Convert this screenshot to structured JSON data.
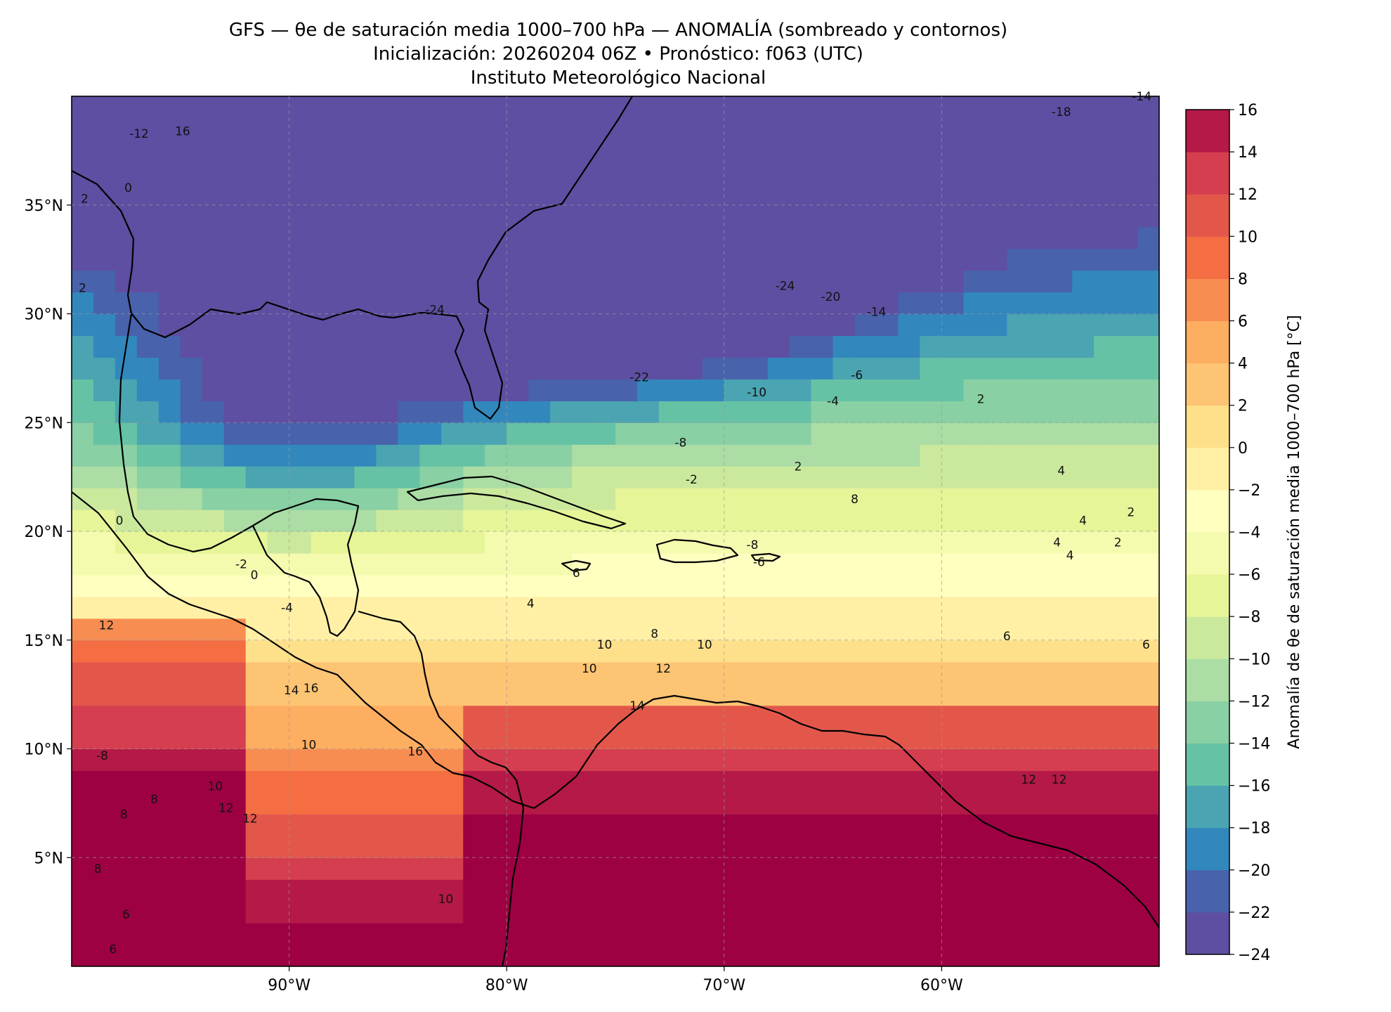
{
  "title": {
    "line1": "GFS — θe de saturación media 1000–700 hPa — ANOMALÍA (sombreado y contornos)",
    "line2": "Inicialización: 20260204 06Z   •   Pronóstico: f063 (UTC)",
    "line3": "Instituto Meteorológico Nacional"
  },
  "map": {
    "lon_range": [
      -100,
      -50
    ],
    "lat_range": [
      0,
      40
    ],
    "lon_ticks": [
      {
        "value": -90,
        "label": "90°W"
      },
      {
        "value": -80,
        "label": "80°W"
      },
      {
        "value": -70,
        "label": "70°W"
      },
      {
        "value": -60,
        "label": "60°W"
      }
    ],
    "lat_ticks": [
      {
        "value": 35,
        "label": "35°N"
      },
      {
        "value": 30,
        "label": "30°N"
      },
      {
        "value": 25,
        "label": "25°N"
      },
      {
        "value": 20,
        "label": "20°N"
      },
      {
        "value": 15,
        "label": "15°N"
      },
      {
        "value": 10,
        "label": "10°N"
      },
      {
        "value": 5,
        "label": "5°N"
      }
    ],
    "gridlines": true,
    "contour_labels": [
      {
        "text": "-12",
        "lon": -96.9,
        "lat": 38.1
      },
      {
        "text": "16",
        "lon": -94.9,
        "lat": 38.2
      },
      {
        "text": "0",
        "lon": -97.4,
        "lat": 35.6
      },
      {
        "text": "2",
        "lon": -99.4,
        "lat": 35.1
      },
      {
        "text": "2",
        "lon": -99.5,
        "lat": 31.0
      },
      {
        "text": "-24",
        "lon": -83.3,
        "lat": 30.0
      },
      {
        "text": "-22",
        "lon": -73.9,
        "lat": 26.9
      },
      {
        "text": "-24",
        "lon": -67.2,
        "lat": 31.1
      },
      {
        "text": "-20",
        "lon": -65.1,
        "lat": 30.6
      },
      {
        "text": "-14",
        "lon": -63.0,
        "lat": 29.9
      },
      {
        "text": "-6",
        "lon": -63.9,
        "lat": 27.0
      },
      {
        "text": "-10",
        "lon": -68.5,
        "lat": 26.2
      },
      {
        "text": "-4",
        "lon": -65.0,
        "lat": 25.8
      },
      {
        "text": "-8",
        "lon": -72.0,
        "lat": 23.9
      },
      {
        "text": "-2",
        "lon": -71.5,
        "lat": 22.2
      },
      {
        "text": "2",
        "lon": -58.2,
        "lat": 25.9
      },
      {
        "text": "2",
        "lon": -66.6,
        "lat": 22.8
      },
      {
        "text": "8",
        "lon": -64.0,
        "lat": 21.3
      },
      {
        "text": "4",
        "lon": -54.5,
        "lat": 22.6
      },
      {
        "text": "4",
        "lon": -53.5,
        "lat": 20.3
      },
      {
        "text": "4",
        "lon": -54.7,
        "lat": 19.3
      },
      {
        "text": "4",
        "lon": -54.1,
        "lat": 18.7
      },
      {
        "text": "2",
        "lon": -51.3,
        "lat": 20.7
      },
      {
        "text": "2",
        "lon": -51.9,
        "lat": 19.3
      },
      {
        "text": "-2",
        "lon": -92.2,
        "lat": 18.3
      },
      {
        "text": "0",
        "lon": -91.6,
        "lat": 17.8
      },
      {
        "text": "-4",
        "lon": -90.1,
        "lat": 16.3
      },
      {
        "text": "0",
        "lon": -97.8,
        "lat": 20.3
      },
      {
        "text": "-8",
        "lon": -68.7,
        "lat": 19.2
      },
      {
        "text": "-6",
        "lon": -68.4,
        "lat": 18.4
      },
      {
        "text": "6",
        "lon": -76.8,
        "lat": 17.9
      },
      {
        "text": "4",
        "lon": -78.9,
        "lat": 16.5
      },
      {
        "text": "8",
        "lon": -73.2,
        "lat": 15.1
      },
      {
        "text": "10",
        "lon": -75.5,
        "lat": 14.6
      },
      {
        "text": "10",
        "lon": -70.9,
        "lat": 14.6
      },
      {
        "text": "10",
        "lon": -76.2,
        "lat": 13.5
      },
      {
        "text": "12",
        "lon": -72.8,
        "lat": 13.5
      },
      {
        "text": "14",
        "lon": -74.0,
        "lat": 11.8
      },
      {
        "text": "6",
        "lon": -57.0,
        "lat": 15.0
      },
      {
        "text": "6",
        "lon": -50.6,
        "lat": 14.6
      },
      {
        "text": "12",
        "lon": -98.4,
        "lat": 15.5
      },
      {
        "text": "14",
        "lon": -89.9,
        "lat": 12.5
      },
      {
        "text": "16",
        "lon": -89.0,
        "lat": 12.6
      },
      {
        "text": "10",
        "lon": -89.1,
        "lat": 10.0
      },
      {
        "text": "16",
        "lon": -84.2,
        "lat": 9.7
      },
      {
        "text": "-8",
        "lon": -98.6,
        "lat": 9.5
      },
      {
        "text": "8",
        "lon": -96.2,
        "lat": 7.5
      },
      {
        "text": "8",
        "lon": -97.6,
        "lat": 6.8
      },
      {
        "text": "10",
        "lon": -93.4,
        "lat": 8.1
      },
      {
        "text": "12",
        "lon": -92.9,
        "lat": 7.1
      },
      {
        "text": "12",
        "lon": -91.8,
        "lat": 6.6
      },
      {
        "text": "8",
        "lon": -98.8,
        "lat": 4.3
      },
      {
        "text": "6",
        "lon": -97.5,
        "lat": 2.2
      },
      {
        "text": "6",
        "lon": -98.1,
        "lat": 0.6
      },
      {
        "text": "10",
        "lon": -82.8,
        "lat": 2.9
      },
      {
        "text": "12",
        "lon": -56.0,
        "lat": 8.4
      },
      {
        "text": "-18",
        "lon": -54.5,
        "lat": 39.1
      },
      {
        "text": "-14",
        "lon": -50.8,
        "lat": 39.8
      },
      {
        "text": "12",
        "lon": -54.6,
        "lat": 8.4
      }
    ]
  },
  "colorbar": {
    "label": "Anomalía de θe de saturación media 1000–700 hPa [°C]",
    "tick_labels": [
      "16",
      "14",
      "12",
      "10",
      "8",
      "6",
      "4",
      "2",
      "0",
      "−2",
      "−4",
      "−6",
      "−8",
      "−10",
      "−12",
      "−14",
      "−16",
      "−18",
      "−20",
      "−22",
      "−24"
    ],
    "levels": [
      -24,
      -22,
      -20,
      -18,
      -16,
      -14,
      -12,
      -10,
      -8,
      -6,
      -4,
      -2,
      0,
      2,
      4,
      6,
      8,
      10,
      12,
      14,
      16
    ],
    "colors": [
      "#5e4fa2",
      "#4862ac",
      "#3288bd",
      "#4ba4b1",
      "#66c2a5",
      "#89d0a4",
      "#abdda4",
      "#cbe99d",
      "#e6f598",
      "#f4faae",
      "#ffffbf",
      "#fff0a6",
      "#fee08b",
      "#fdc474",
      "#fdae61",
      "#f88d52",
      "#f46d43",
      "#e3574b",
      "#d53e4f",
      "#b41947",
      "#9e0142"
    ]
  },
  "legend_colors": {
    "very_cold": "#5e4fa2",
    "cold": "#3288bd",
    "neutral": "#ffffbf",
    "warm": "#f46d43",
    "very_warm": "#9e0142"
  }
}
